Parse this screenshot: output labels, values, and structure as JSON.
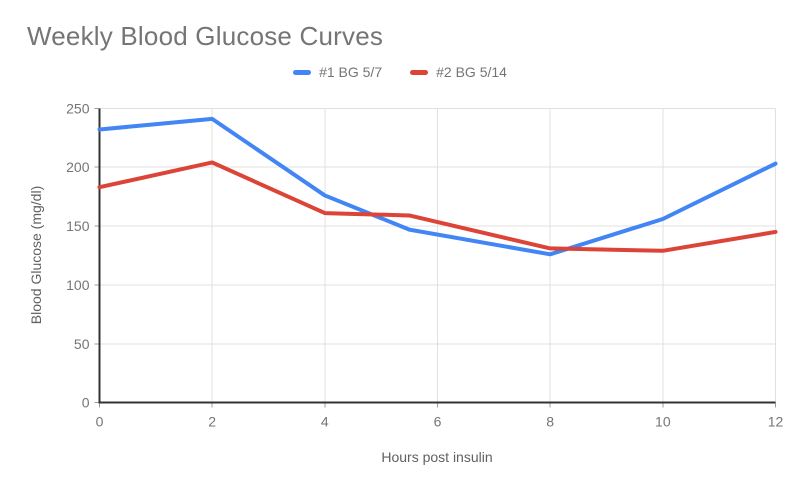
{
  "chart_data": {
    "type": "line",
    "title": "Weekly Blood Glucose Curves",
    "xlabel": "Hours post insulin",
    "ylabel": "Blood Glucose (mg/dl)",
    "x": [
      0,
      2,
      4,
      5.5,
      8,
      10,
      12
    ],
    "series": [
      {
        "name": "#1 BG 5/7",
        "color": "#4285F4",
        "values": [
          232,
          241,
          176,
          147,
          126,
          156,
          203
        ]
      },
      {
        "name": "#2 BG 5/14",
        "color": "#DB4437",
        "values": [
          183,
          204,
          161,
          159,
          131,
          129,
          145
        ]
      }
    ],
    "xlim": [
      0,
      12
    ],
    "ylim": [
      0,
      250
    ],
    "xticks": [
      0,
      2,
      4,
      6,
      8,
      10,
      12
    ],
    "yticks": [
      0,
      50,
      100,
      150,
      200,
      250
    ],
    "grid": true,
    "legend_position": "top"
  },
  "colors": {
    "background": "#ffffff",
    "grid": "#e0e0e0",
    "axis": "#333333",
    "tick_mark": "#9e9e9e",
    "tick_label": "#757575",
    "axis_title": "#616161",
    "title": "#757575"
  }
}
